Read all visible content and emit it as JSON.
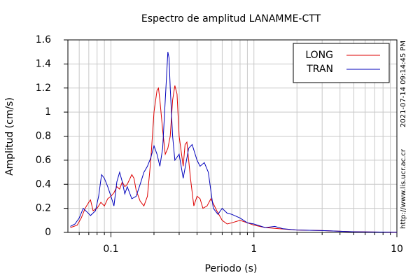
{
  "chart_data": {
    "type": "line",
    "title": "Espectro de amplitud LANAMME-CTT",
    "x_label": "Periodo (s)",
    "y_label": "Amplitud (cm/s)",
    "side_texts": [
      "2021-07-14 09:14:45 PM",
      "http://www.lis.ucr.ac.cr"
    ],
    "xscale": "log",
    "xlim": [
      0.05,
      10
    ],
    "ylim": [
      0,
      1.6
    ],
    "xticks": [
      0.1,
      1,
      10
    ],
    "xminorticks": [
      0.06,
      0.07,
      0.08,
      0.09,
      0.2,
      0.3,
      0.4,
      0.5,
      0.6,
      0.7,
      0.8,
      0.9,
      2,
      3,
      4,
      5,
      6,
      7,
      8,
      9
    ],
    "yticks": [
      0,
      0.2,
      0.4,
      0.6,
      0.8,
      1,
      1.2,
      1.4,
      1.6
    ],
    "grid": true,
    "legend": "upper right",
    "series": [
      {
        "name": "LONG",
        "color": "#dd0000",
        "x": [
          0.052,
          0.058,
          0.062,
          0.066,
          0.07,
          0.072,
          0.075,
          0.08,
          0.085,
          0.09,
          0.095,
          0.1,
          0.105,
          0.11,
          0.115,
          0.12,
          0.125,
          0.13,
          0.14,
          0.145,
          0.15,
          0.16,
          0.17,
          0.18,
          0.19,
          0.2,
          0.21,
          0.215,
          0.22,
          0.23,
          0.24,
          0.25,
          0.26,
          0.27,
          0.28,
          0.29,
          0.3,
          0.32,
          0.33,
          0.34,
          0.36,
          0.38,
          0.4,
          0.42,
          0.44,
          0.47,
          0.5,
          0.55,
          0.6,
          0.65,
          0.7,
          0.8,
          0.9,
          1.0,
          1.2,
          1.5,
          2,
          3,
          5,
          10
        ],
        "values": [
          0.04,
          0.06,
          0.12,
          0.2,
          0.25,
          0.27,
          0.18,
          0.2,
          0.25,
          0.22,
          0.28,
          0.3,
          0.33,
          0.38,
          0.36,
          0.42,
          0.38,
          0.4,
          0.48,
          0.45,
          0.35,
          0.26,
          0.22,
          0.3,
          0.6,
          1.0,
          1.18,
          1.2,
          1.1,
          0.85,
          0.65,
          0.7,
          0.8,
          1.1,
          1.22,
          1.15,
          0.8,
          0.55,
          0.73,
          0.75,
          0.45,
          0.22,
          0.3,
          0.28,
          0.2,
          0.22,
          0.28,
          0.18,
          0.1,
          0.07,
          0.08,
          0.1,
          0.08,
          0.06,
          0.04,
          0.03,
          0.02,
          0.015,
          0.005,
          0.002
        ]
      },
      {
        "name": "TRAN",
        "color": "#0000bb",
        "x": [
          0.052,
          0.056,
          0.06,
          0.064,
          0.068,
          0.072,
          0.078,
          0.082,
          0.086,
          0.09,
          0.095,
          0.1,
          0.105,
          0.11,
          0.115,
          0.12,
          0.125,
          0.13,
          0.14,
          0.15,
          0.16,
          0.17,
          0.18,
          0.19,
          0.2,
          0.21,
          0.22,
          0.23,
          0.24,
          0.25,
          0.255,
          0.26,
          0.27,
          0.28,
          0.3,
          0.32,
          0.35,
          0.37,
          0.4,
          0.42,
          0.45,
          0.48,
          0.52,
          0.56,
          0.6,
          0.65,
          0.7,
          0.8,
          0.9,
          1.0,
          1.2,
          1.4,
          1.6,
          2,
          3,
          5,
          10
        ],
        "values": [
          0.05,
          0.07,
          0.12,
          0.2,
          0.17,
          0.14,
          0.18,
          0.3,
          0.48,
          0.45,
          0.38,
          0.3,
          0.22,
          0.42,
          0.5,
          0.42,
          0.32,
          0.38,
          0.28,
          0.3,
          0.4,
          0.5,
          0.55,
          0.62,
          0.72,
          0.65,
          0.55,
          0.7,
          1.1,
          1.5,
          1.45,
          1.2,
          0.8,
          0.6,
          0.65,
          0.45,
          0.7,
          0.73,
          0.6,
          0.55,
          0.58,
          0.5,
          0.2,
          0.15,
          0.2,
          0.16,
          0.15,
          0.12,
          0.08,
          0.07,
          0.04,
          0.05,
          0.03,
          0.02,
          0.015,
          0.005,
          0.002
        ]
      }
    ]
  }
}
